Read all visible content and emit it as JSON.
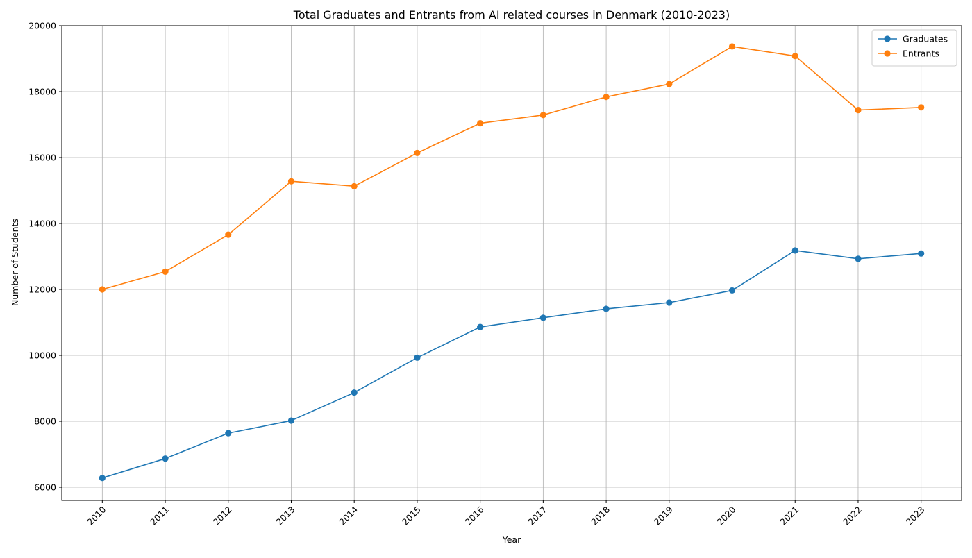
{
  "chart_data": {
    "type": "line",
    "title": "Total Graduates and Entrants from AI related courses in Denmark (2010-2023)",
    "xlabel": "Year",
    "ylabel": "Number of Students",
    "x": [
      2010,
      2011,
      2012,
      2013,
      2014,
      2015,
      2016,
      2017,
      2018,
      2019,
      2020,
      2021,
      2022,
      2023
    ],
    "x_tick_labels": [
      "2010",
      "2011",
      "2012",
      "2013",
      "2014",
      "2015",
      "2016",
      "2017",
      "2018",
      "2019",
      "2020",
      "2021",
      "2022",
      "2023"
    ],
    "y_ticks": [
      6000,
      8000,
      10000,
      12000,
      14000,
      16000,
      18000,
      20000
    ],
    "ylim": [
      5600,
      20000
    ],
    "grid": true,
    "legend": "top-right",
    "markers": "circle",
    "series": [
      {
        "name": "Graduates",
        "color": "#1f77b4",
        "values": [
          6280,
          6870,
          7640,
          8020,
          8870,
          9930,
          10860,
          11140,
          11410,
          11600,
          11970,
          13180,
          12930,
          13090
        ]
      },
      {
        "name": "Entrants",
        "color": "#ff7f0e",
        "values": [
          12000,
          12540,
          13660,
          15280,
          15130,
          16140,
          17040,
          17290,
          17840,
          18230,
          19370,
          19080,
          17440,
          17520
        ]
      }
    ]
  }
}
